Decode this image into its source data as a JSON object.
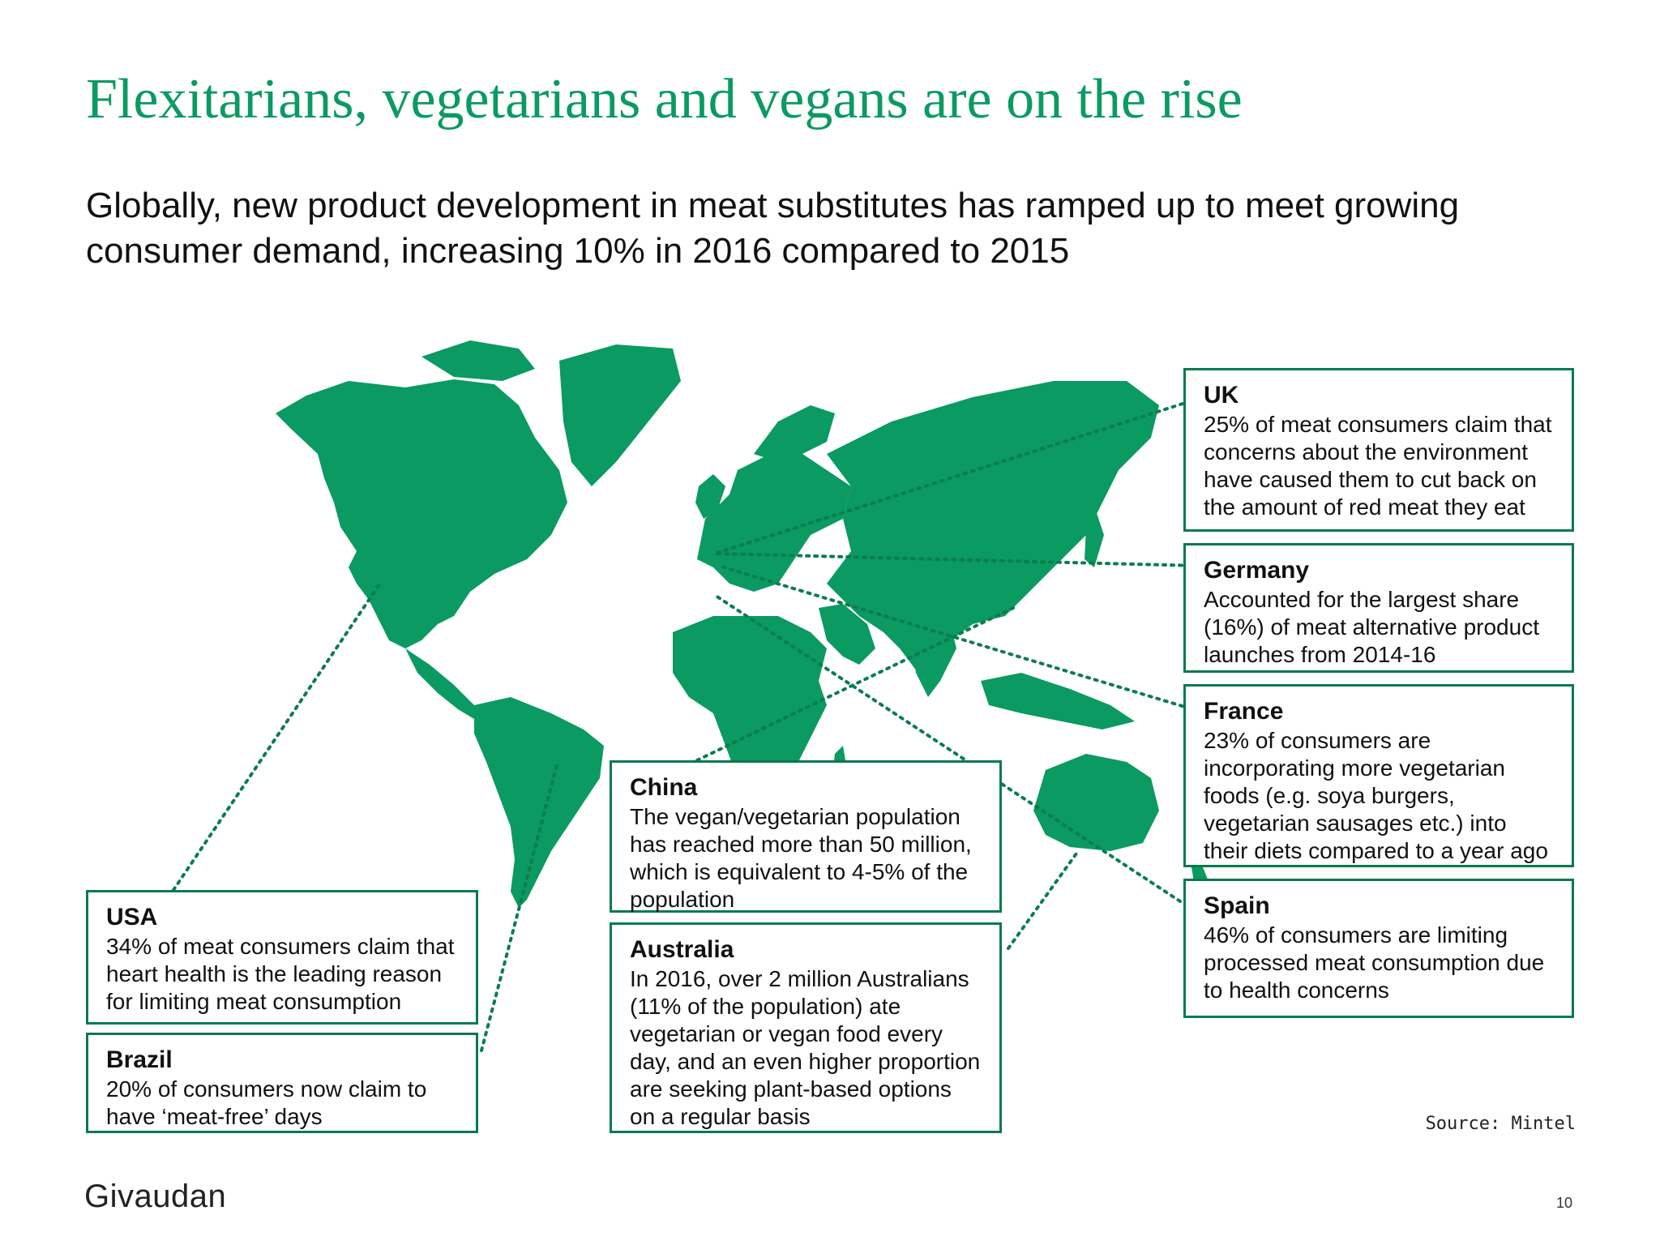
{
  "slide": {
    "title": "Flexitarians, vegetarians and vegans are on the rise",
    "subtitle": "Globally, new product development in meat substitutes has ramped up to meet growing consumer demand, increasing 10% in 2016 compared to 2015",
    "source": "Source: Mintel",
    "logo": "Givaudan",
    "page_number": "10"
  },
  "colors": {
    "title": "#0b9a63",
    "land": "#0a9a62",
    "border": "#087a4e",
    "leader": "#0b7d4f"
  },
  "callouts": {
    "uk": {
      "heading": "UK",
      "body": "25% of meat consumers claim that concerns about the environment have caused them to cut back on the amount of red meat they eat"
    },
    "germany": {
      "heading": "Germany",
      "body": "Accounted for the largest share (16%) of meat alternative product launches from 2014-16"
    },
    "france": {
      "heading": "France",
      "body": "23% of consumers are incorporating more vegetarian foods (e.g. soya burgers, vegetarian sausages etc.) into their diets compared to a year ago"
    },
    "spain": {
      "heading": "Spain",
      "body": "46% of consumers are limiting processed meat consumption due to health concerns"
    },
    "china": {
      "heading": "China",
      "body": "The vegan/vegetarian population has reached more than 50 million, which is equivalent to 4-5% of the population"
    },
    "australia": {
      "heading": "Australia",
      "body": "In 2016, over 2 million Australians (11% of the population) ate vegetarian or vegan food every day, and an even higher proportion are seeking plant-based options on a regular basis"
    },
    "usa": {
      "heading": "USA",
      "body": "34% of meat consumers claim that heart health is the leading reason for limiting meat consumption"
    },
    "brazil": {
      "heading": "Brazil",
      "body": "20% of consumers now claim to have ‘meat-free’ days"
    }
  }
}
